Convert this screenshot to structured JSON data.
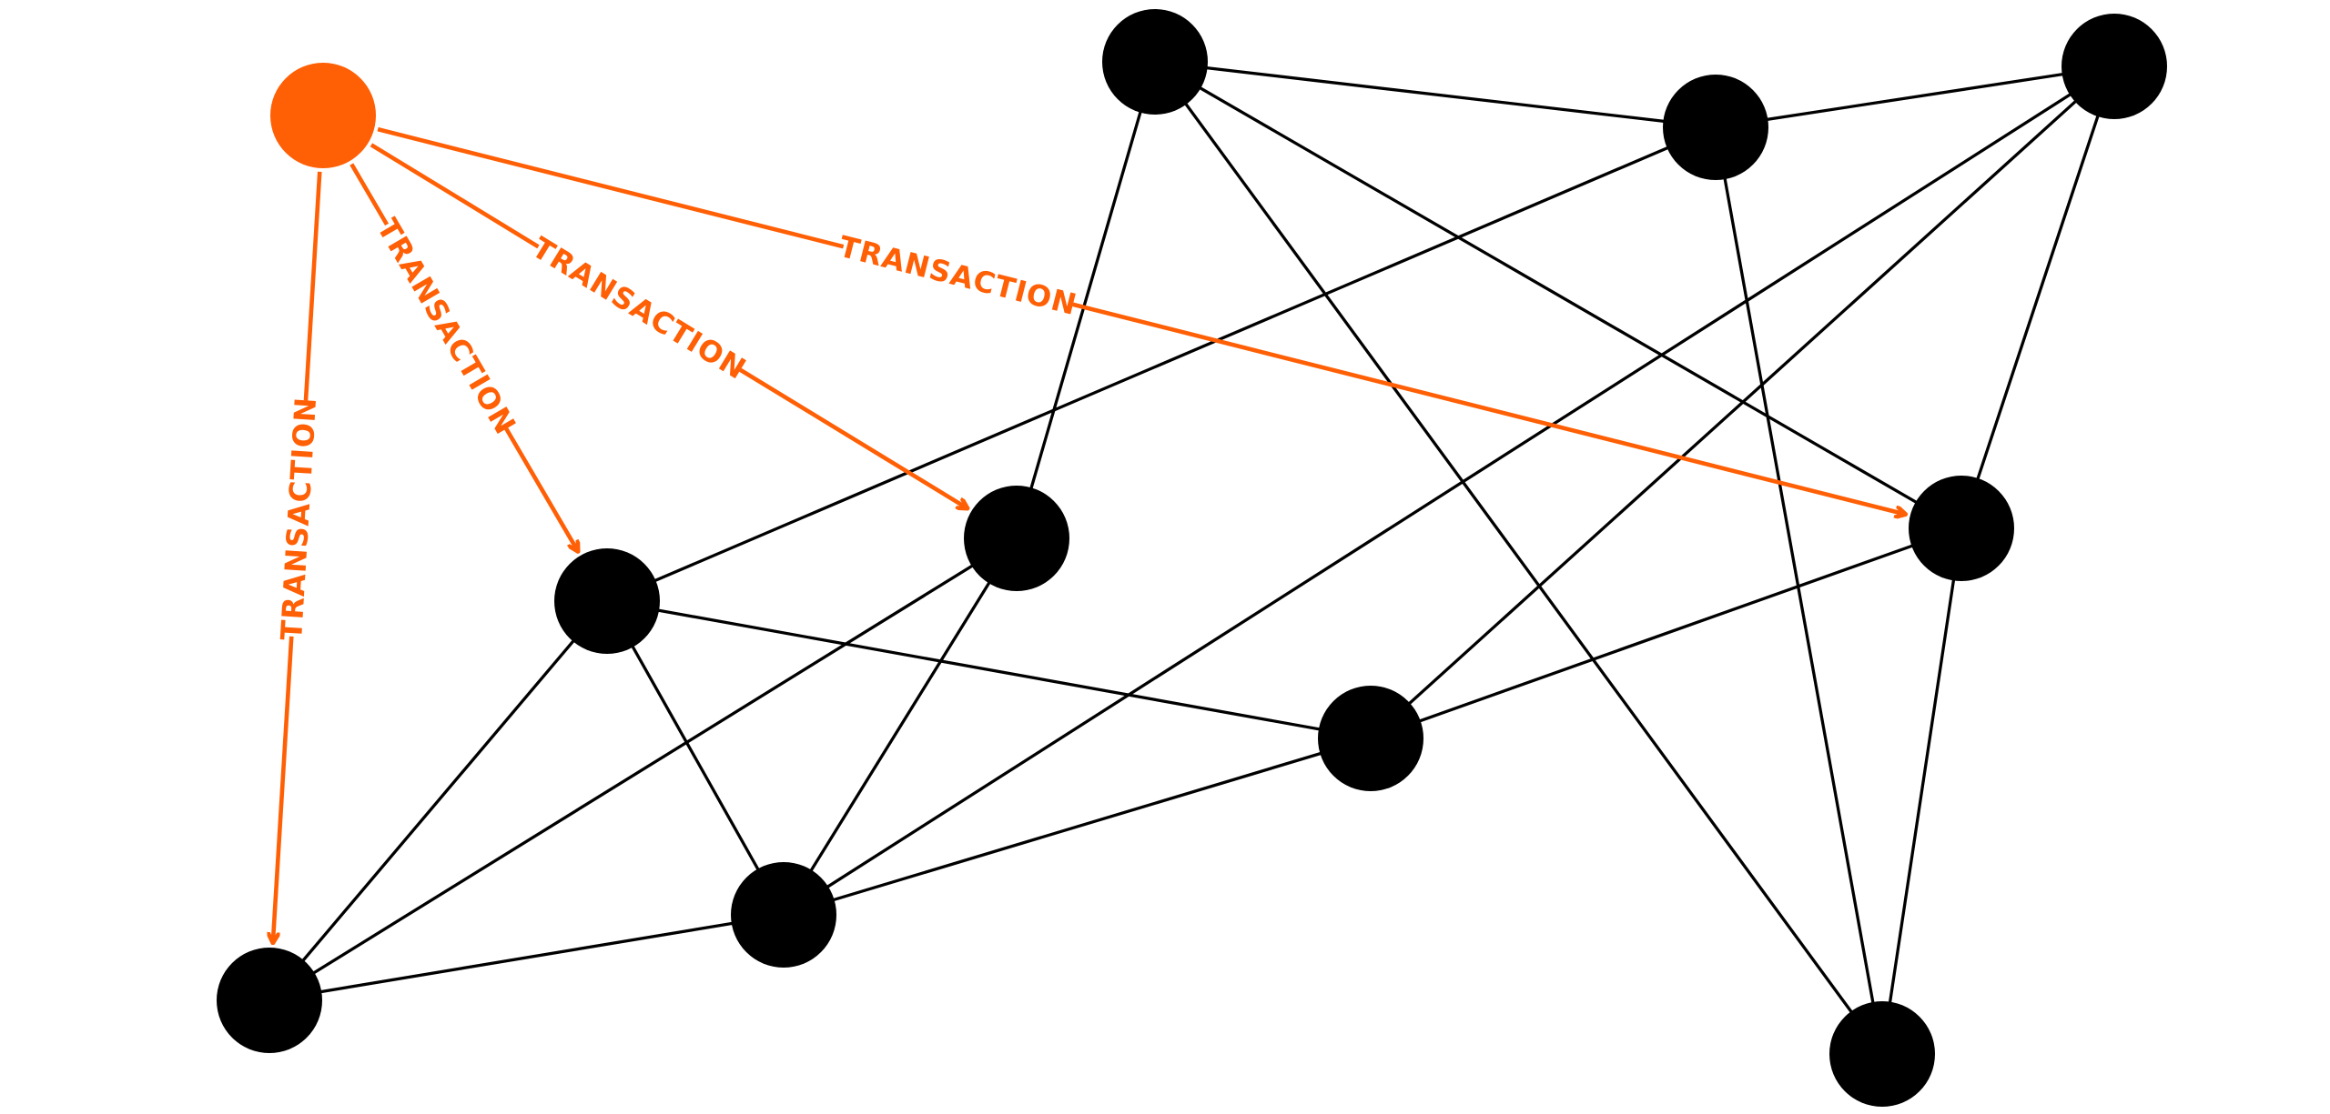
{
  "colors": {
    "background": "#ffffff",
    "node": "#000000",
    "edge": "#000000",
    "highlight": "#ff5f05",
    "highlight_label": "#ff5f05"
  },
  "graph": {
    "nodes": [
      {
        "id": "source",
        "highlighted": true
      },
      {
        "id": "n1",
        "highlighted": false
      },
      {
        "id": "n2",
        "highlighted": false
      },
      {
        "id": "n3",
        "highlighted": false
      },
      {
        "id": "n4",
        "highlighted": false
      },
      {
        "id": "n5",
        "highlighted": false
      },
      {
        "id": "n6",
        "highlighted": false
      },
      {
        "id": "n7",
        "highlighted": false
      },
      {
        "id": "n8",
        "highlighted": false
      },
      {
        "id": "n9",
        "highlighted": false
      },
      {
        "id": "n10",
        "highlighted": false
      },
      {
        "id": "n11",
        "highlighted": false
      }
    ],
    "edges": [
      {
        "from": "n5",
        "to": "n7"
      },
      {
        "from": "n5",
        "to": "n1"
      },
      {
        "from": "n5",
        "to": "n9"
      },
      {
        "from": "n5",
        "to": "n11"
      },
      {
        "from": "n7",
        "to": "n8"
      },
      {
        "from": "n7",
        "to": "n10"
      },
      {
        "from": "n7",
        "to": "n2"
      },
      {
        "from": "n8",
        "to": "n9"
      },
      {
        "from": "n8",
        "to": "n4"
      },
      {
        "from": "n8",
        "to": "n6"
      },
      {
        "from": "n9",
        "to": "n10"
      },
      {
        "from": "n9",
        "to": "n6"
      },
      {
        "from": "n2",
        "to": "n6"
      },
      {
        "from": "n2",
        "to": "n3"
      },
      {
        "from": "n2",
        "to": "n4"
      },
      {
        "from": "n1",
        "to": "n3"
      },
      {
        "from": "n1",
        "to": "n4"
      },
      {
        "from": "n3",
        "to": "n4"
      },
      {
        "from": "n4",
        "to": "n6"
      }
    ],
    "highlighted_edges": [
      {
        "from": "source",
        "to": "n3",
        "label": "TRANSACTION"
      },
      {
        "from": "source",
        "to": "n2",
        "label": "TRANSACTION"
      },
      {
        "from": "source",
        "to": "n1",
        "label": "TRANSACTION"
      },
      {
        "from": "source",
        "to": "n9",
        "label": "TRANSACTION"
      }
    ]
  }
}
